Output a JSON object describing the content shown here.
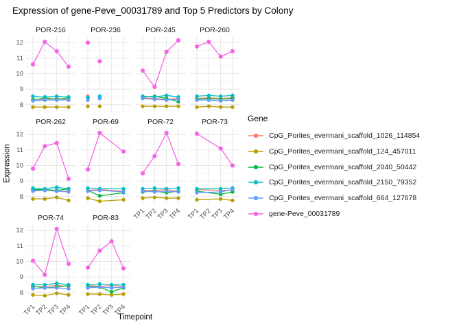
{
  "title": "Expression of gene-Peve_00031789 and Top 5 Predictors by Colony",
  "chart_data": {
    "type": "line",
    "facet_by": "Colony",
    "xlabel": "Timepoint",
    "ylabel": "Expression",
    "x_categories": [
      "TP1",
      "TP2",
      "TP3",
      "TP4"
    ],
    "y_ticks": [
      8,
      9,
      10,
      11,
      12
    ],
    "y_minor_ticks": [
      8.5,
      9.5,
      10.5,
      11.5
    ],
    "ylim": [
      7.55,
      12.45
    ],
    "grid": true,
    "legend_title": "Gene",
    "legend_position": "right",
    "genes": [
      {
        "key": "s1026",
        "label": "CpG_Porites_evermani_scaffold_1026_114854",
        "color": "#F8766D"
      },
      {
        "key": "s124",
        "label": "CpG_Porites_evermani_scaffold_124_457011",
        "color": "#B79F00"
      },
      {
        "key": "s2040",
        "label": "CpG_Porites_evermani_scaffold_2040_50442",
        "color": "#00BA38"
      },
      {
        "key": "s2150",
        "label": "CpG_Porites_evermani_scaffold_2150_79352",
        "color": "#00BFC4"
      },
      {
        "key": "s664",
        "label": "CpG_Porites_evermani_scaffold_664_127678",
        "color": "#619CFF"
      },
      {
        "key": "gene",
        "label": "gene-Peve_00031789",
        "color": "#F564E3"
      }
    ],
    "facets": [
      {
        "name": "POR-216",
        "timepoints": [
          1,
          2,
          3,
          4
        ],
        "points_only": false,
        "series": {
          "s1026": [
            8.35,
            8.35,
            8.4,
            8.35
          ],
          "s124": [
            7.85,
            7.85,
            7.85,
            7.85
          ],
          "s2040": [
            8.3,
            8.45,
            8.35,
            8.45
          ],
          "s2150": [
            8.55,
            8.5,
            8.55,
            8.5
          ],
          "s664": [
            8.25,
            8.3,
            8.3,
            8.3
          ],
          "gene": [
            10.6,
            12.05,
            11.45,
            10.45
          ]
        }
      },
      {
        "name": "POR-236",
        "timepoints": [
          1,
          2
        ],
        "points_only": true,
        "series": {
          "s1026": [
            8.55,
            8.5
          ],
          "s124": [
            7.9,
            7.9
          ],
          "s2040": [
            8.45,
            8.5
          ],
          "s2150": [
            8.45,
            8.55
          ],
          "s664": [
            8.3,
            8.4
          ],
          "gene": [
            12.0,
            10.8
          ]
        }
      },
      {
        "name": "POR-245",
        "timepoints": [
          1,
          2,
          3,
          4
        ],
        "points_only": false,
        "series": {
          "s1026": [
            8.45,
            8.4,
            8.35,
            8.4
          ],
          "s124": [
            7.9,
            7.9,
            7.9,
            7.9
          ],
          "s2040": [
            8.5,
            8.55,
            8.4,
            8.2
          ],
          "s2150": [
            8.55,
            8.5,
            8.6,
            8.5
          ],
          "s664": [
            8.4,
            8.35,
            8.3,
            8.35
          ],
          "gene": [
            10.2,
            9.15,
            11.4,
            12.15
          ]
        }
      },
      {
        "name": "POR-260",
        "timepoints": [
          1,
          2,
          3,
          4
        ],
        "points_only": false,
        "series": {
          "s1026": [
            8.4,
            8.45,
            8.4,
            8.45
          ],
          "s124": [
            7.85,
            7.9,
            7.85,
            7.85
          ],
          "s2040": [
            8.35,
            8.4,
            8.35,
            8.4
          ],
          "s2150": [
            8.55,
            8.6,
            8.55,
            8.6
          ],
          "s664": [
            8.3,
            8.3,
            8.25,
            8.3
          ],
          "gene": [
            11.75,
            12.05,
            11.1,
            11.45
          ]
        }
      },
      {
        "name": "POR-262",
        "timepoints": [
          1,
          2,
          3,
          4
        ],
        "points_only": false,
        "series": {
          "s1026": [
            8.4,
            8.4,
            8.35,
            8.35
          ],
          "s124": [
            7.85,
            7.85,
            7.95,
            7.75
          ],
          "s2040": [
            8.45,
            8.45,
            8.4,
            8.5
          ],
          "s2150": [
            8.55,
            8.5,
            8.6,
            8.5
          ],
          "s664": [
            8.35,
            8.4,
            8.35,
            8.3
          ],
          "gene": [
            9.8,
            11.25,
            11.45,
            9.15
          ]
        }
      },
      {
        "name": "POR-69",
        "timepoints": [
          1,
          2,
          4
        ],
        "points_only": false,
        "series": {
          "s1026": [
            8.4,
            8.45,
            8.35
          ],
          "s124": [
            7.9,
            7.7,
            7.8
          ],
          "s2040": [
            8.4,
            8.05,
            8.25
          ],
          "s2150": [
            8.55,
            8.5,
            8.5
          ],
          "s664": [
            8.35,
            8.4,
            8.3
          ],
          "gene": [
            9.75,
            12.1,
            10.9
          ]
        }
      },
      {
        "name": "POR-72",
        "timepoints": [
          1,
          2,
          3,
          4
        ],
        "points_only": false,
        "series": {
          "s1026": [
            8.4,
            8.4,
            8.45,
            8.35
          ],
          "s124": [
            7.9,
            7.95,
            7.9,
            7.9
          ],
          "s2040": [
            8.3,
            8.35,
            8.25,
            8.35
          ],
          "s2150": [
            8.5,
            8.55,
            8.5,
            8.55
          ],
          "s664": [
            8.35,
            8.3,
            8.35,
            8.3
          ],
          "gene": [
            9.5,
            10.6,
            12.1,
            10.1
          ]
        }
      },
      {
        "name": "POR-73",
        "timepoints": [
          1,
          3,
          4
        ],
        "points_only": false,
        "series": {
          "s1026": [
            8.45,
            8.4,
            8.4
          ],
          "s124": [
            7.8,
            7.85,
            7.75
          ],
          "s2040": [
            8.35,
            8.15,
            8.3
          ],
          "s2150": [
            8.5,
            8.5,
            8.55
          ],
          "s664": [
            8.25,
            8.3,
            8.45
          ],
          "gene": [
            12.05,
            11.1,
            10.0
          ]
        }
      },
      {
        "name": "POR-74",
        "timepoints": [
          1,
          2,
          3,
          4
        ],
        "points_only": false,
        "series": {
          "s1026": [
            8.35,
            8.4,
            8.45,
            8.4
          ],
          "s124": [
            7.85,
            7.8,
            7.95,
            7.85
          ],
          "s2040": [
            8.4,
            8.3,
            8.35,
            8.45
          ],
          "s2150": [
            8.5,
            8.5,
            8.6,
            8.5
          ],
          "s664": [
            8.25,
            8.3,
            8.3,
            8.25
          ],
          "gene": [
            10.05,
            9.15,
            12.1,
            9.85
          ]
        }
      },
      {
        "name": "POR-83",
        "timepoints": [
          1,
          2,
          3,
          4
        ],
        "points_only": false,
        "series": {
          "s1026": [
            8.45,
            8.4,
            8.45,
            8.4
          ],
          "s124": [
            7.9,
            7.9,
            7.85,
            7.9
          ],
          "s2040": [
            8.4,
            8.35,
            8.05,
            8.3
          ],
          "s2150": [
            8.5,
            8.55,
            8.5,
            8.5
          ],
          "s664": [
            8.3,
            8.35,
            8.3,
            8.35
          ],
          "gene": [
            9.6,
            10.7,
            11.3,
            9.55
          ]
        }
      }
    ]
  }
}
